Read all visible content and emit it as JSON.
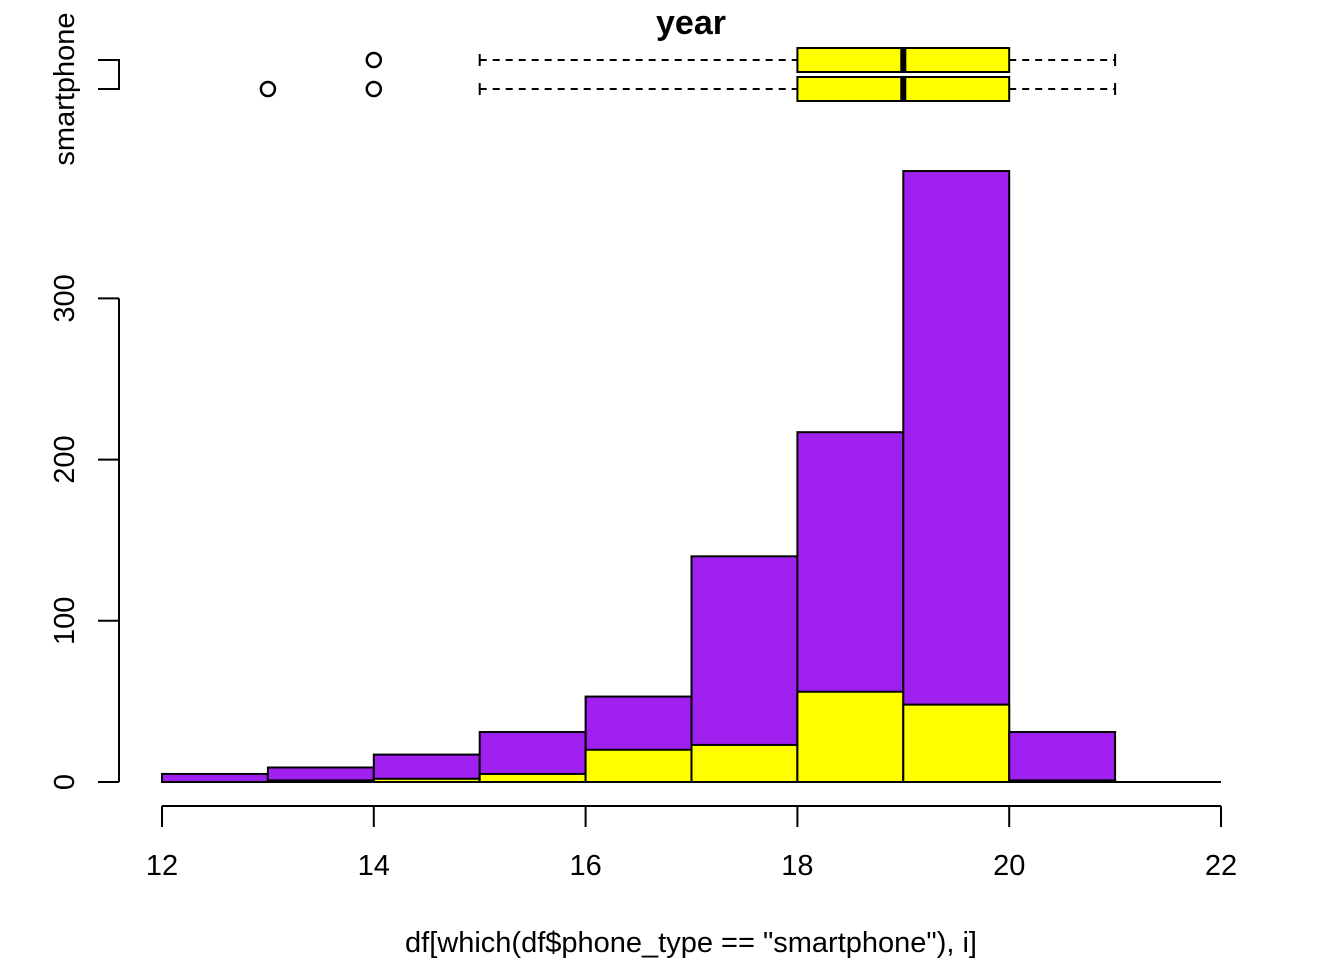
{
  "chart_data": {
    "type": "bar",
    "title": "year",
    "xlabel": "df[which(df$phone_type == \"smartphone\"), i]",
    "ylabel_partial": "smartphone",
    "xlim": [
      12,
      22
    ],
    "ylim": [
      0,
      380
    ],
    "x_ticks": [
      12,
      14,
      16,
      18,
      20,
      22
    ],
    "y_ticks": [
      0,
      100,
      200,
      300
    ],
    "bins": [
      {
        "from": 12,
        "to": 13,
        "total": 5,
        "yellow": 0
      },
      {
        "from": 13,
        "to": 14,
        "total": 9,
        "yellow": 1
      },
      {
        "from": 14,
        "to": 15,
        "total": 17,
        "yellow": 2
      },
      {
        "from": 15,
        "to": 16,
        "total": 31,
        "yellow": 5
      },
      {
        "from": 16,
        "to": 17,
        "total": 53,
        "yellow": 20
      },
      {
        "from": 17,
        "to": 18,
        "total": 140,
        "yellow": 23
      },
      {
        "from": 18,
        "to": 19,
        "total": 217,
        "yellow": 56
      },
      {
        "from": 19,
        "to": 20,
        "total": 379,
        "yellow": 48
      },
      {
        "from": 20,
        "to": 21,
        "total": 31,
        "yellow": 1
      },
      {
        "from": 21,
        "to": 22,
        "total": 0,
        "yellow": 0
      }
    ],
    "series": [
      {
        "values": [
          5,
          9,
          17,
          31,
          53,
          140,
          217,
          379,
          31,
          0
        ],
        "color": "#A020F0"
      },
      {
        "values": [
          0,
          1,
          2,
          5,
          20,
          23,
          56,
          48,
          1,
          0
        ],
        "color": "#FFFF00"
      }
    ],
    "boxplots": [
      {
        "lower_whisker": 15,
        "q1": 18,
        "median": 19,
        "q3": 20,
        "upper_whisker": 21,
        "outliers": [
          14
        ],
        "color": "#FFFF00"
      },
      {
        "lower_whisker": 15,
        "q1": 18,
        "median": 19,
        "q3": 20,
        "upper_whisker": 21,
        "outliers": [
          13,
          14
        ],
        "color": "#FFFF00"
      }
    ],
    "colors": {
      "total": "#A020F0",
      "subset": "#FFFF00"
    }
  }
}
